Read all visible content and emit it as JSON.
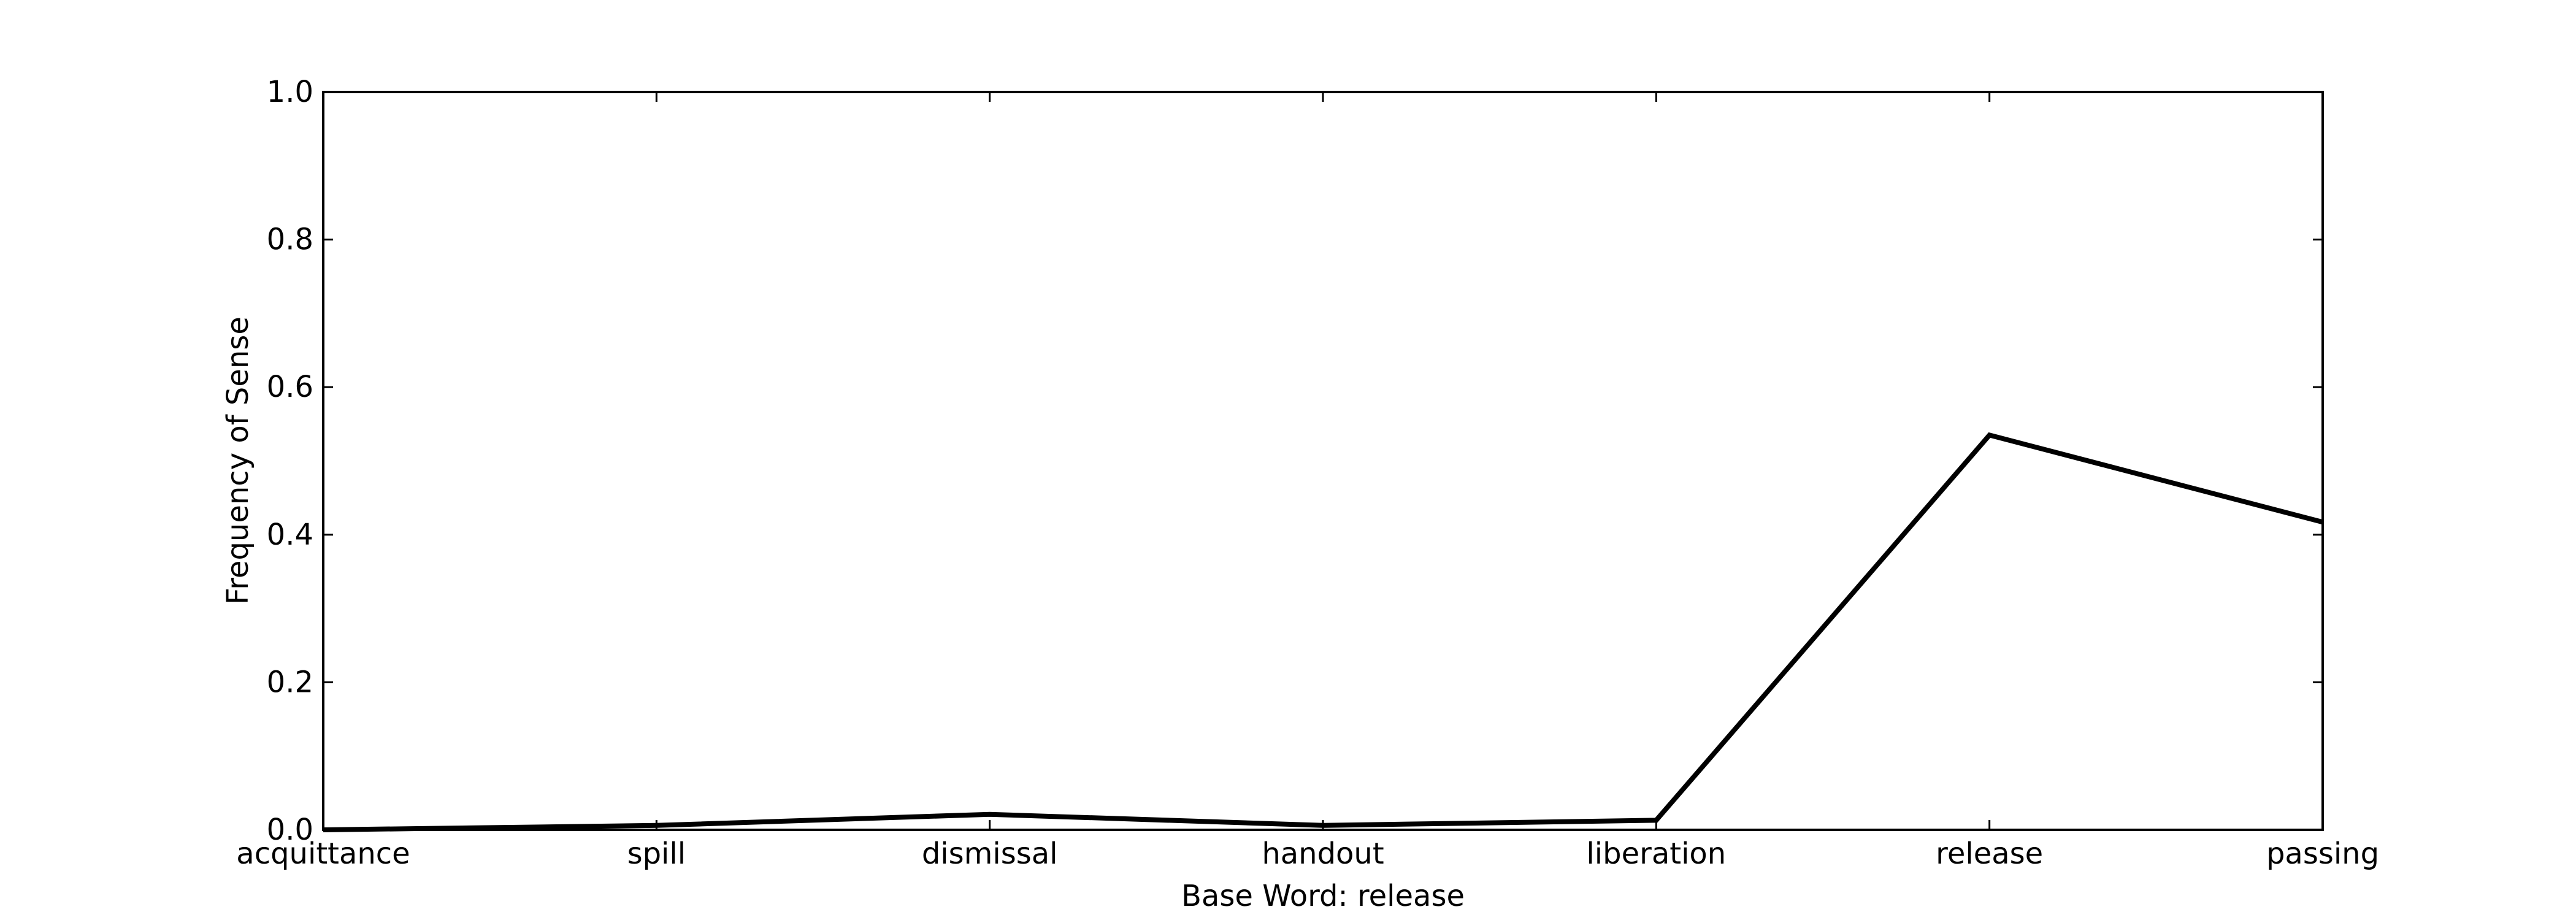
{
  "chart_data": {
    "type": "line",
    "title": "",
    "xlabel": "Base Word: release",
    "ylabel": "Frequency of Sense",
    "categories": [
      "acquittance",
      "spill",
      "dismissal",
      "handout",
      "liberation",
      "release",
      "passing"
    ],
    "series": [
      {
        "values": [
          0.0,
          0.006,
          0.021,
          0.006,
          0.013,
          0.535,
          0.417
        ]
      }
    ],
    "ylim": [
      0,
      1.0
    ],
    "yticks": [
      "0.0",
      "0.2",
      "0.4",
      "0.6",
      "0.8",
      "1.0"
    ],
    "grid": false,
    "line_color": "#000000"
  }
}
